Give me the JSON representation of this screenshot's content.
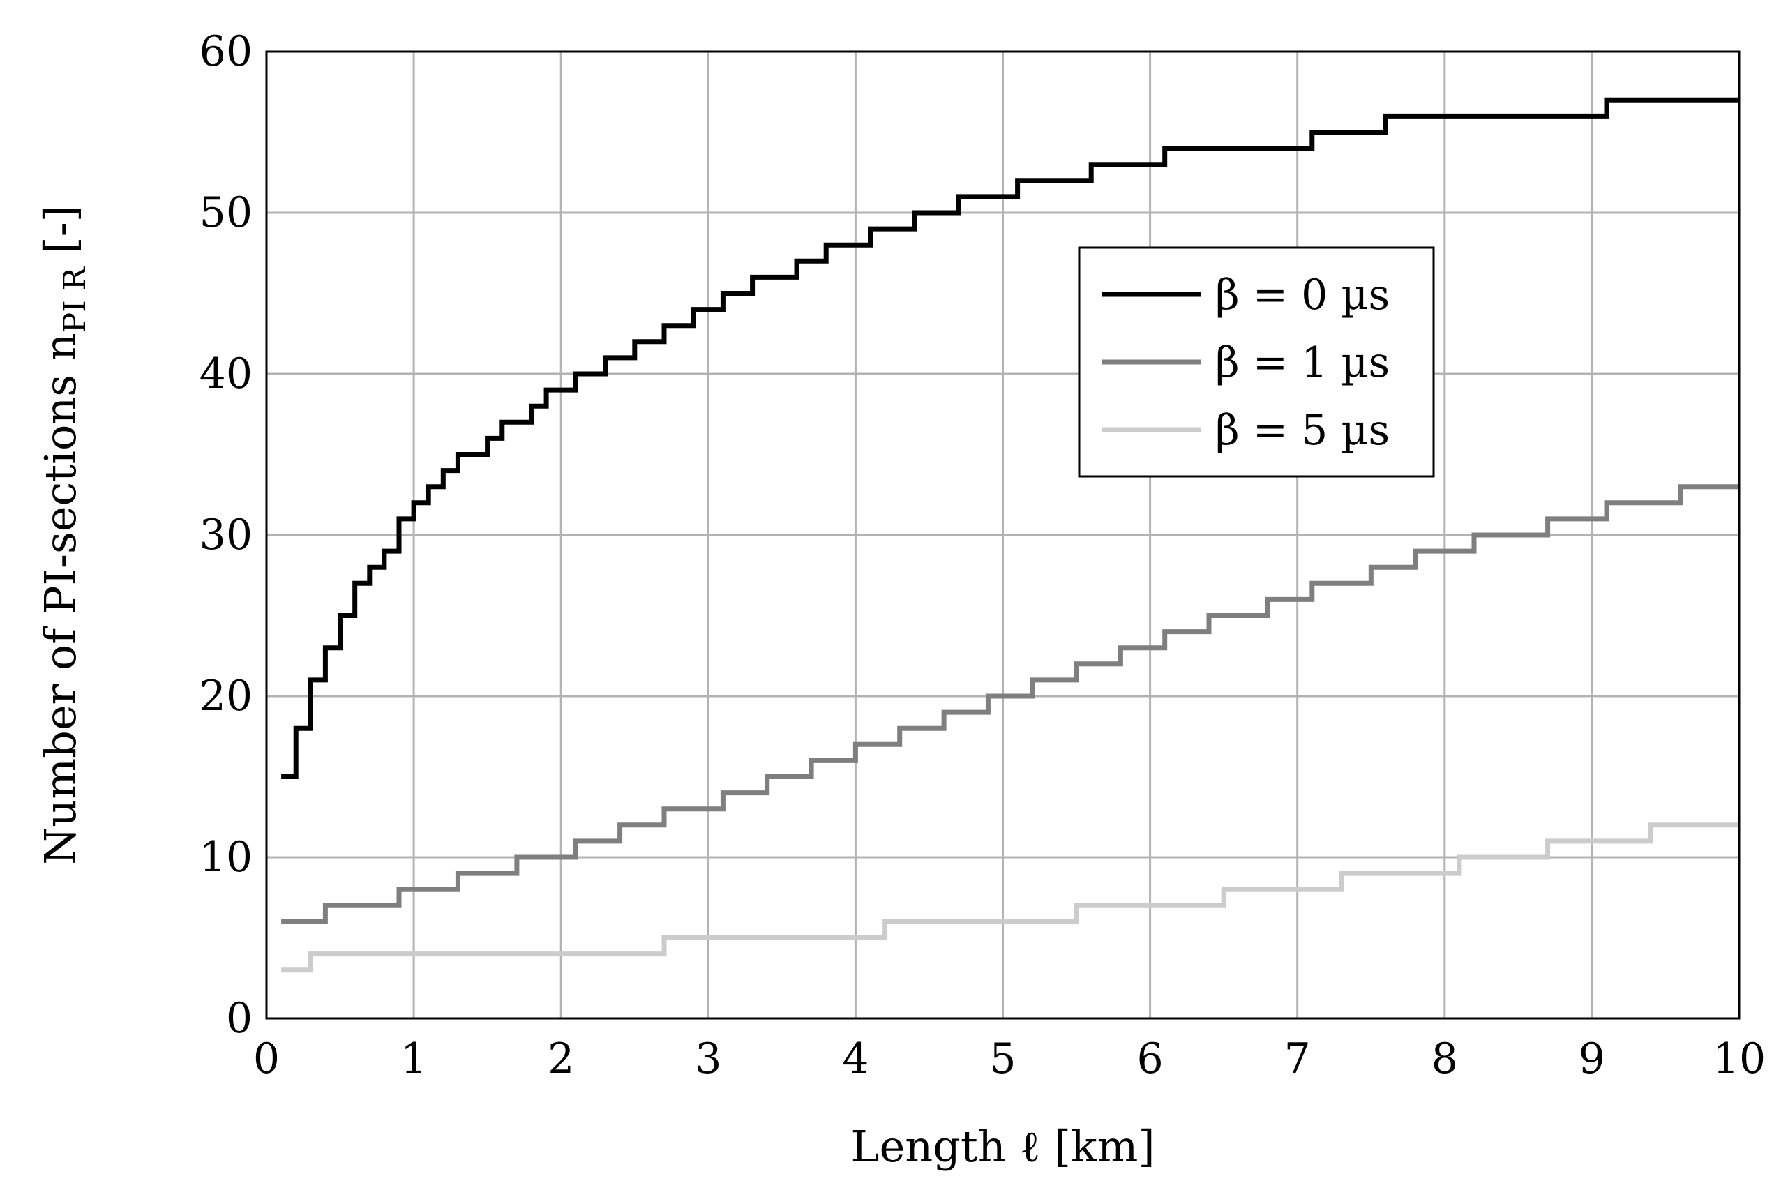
{
  "chart_data": {
    "type": "line",
    "step": true,
    "xlabel": "Length ℓ [km]",
    "ylabel_main": "Number of PI-sections n",
    "ylabel_sub": "PI R",
    "ylabel_end": " [-]",
    "xlim": [
      0,
      10
    ],
    "ylim": [
      0,
      60
    ],
    "xticks": [
      0,
      1,
      2,
      3,
      4,
      5,
      6,
      7,
      8,
      9,
      10
    ],
    "yticks": [
      0,
      10,
      20,
      30,
      40,
      50,
      60
    ],
    "grid": true,
    "legend_position": "upper-center-right",
    "series": [
      {
        "name": "β = 0 µs",
        "color": "#000000",
        "x": [
          0.1,
          0.2,
          0.3,
          0.4,
          0.5,
          0.6,
          0.7,
          0.8,
          0.9,
          1.0,
          1.1,
          1.2,
          1.3,
          1.5,
          1.6,
          1.8,
          1.9,
          2.1,
          2.3,
          2.5,
          2.7,
          2.9,
          3.1,
          3.3,
          3.6,
          3.8,
          4.1,
          4.4,
          4.7,
          5.1,
          5.6,
          6.1,
          7.1,
          7.6,
          9.1,
          10.0
        ],
        "y": [
          15,
          18,
          21,
          23,
          25,
          27,
          28,
          29,
          31,
          32,
          33,
          34,
          35,
          36,
          37,
          38,
          39,
          40,
          41,
          42,
          43,
          44,
          45,
          46,
          47,
          48,
          49,
          50,
          51,
          52,
          53,
          54,
          55,
          56,
          57,
          57
        ]
      },
      {
        "name": "β = 1 µs",
        "color": "#7f7f7f",
        "x": [
          0.1,
          0.4,
          0.9,
          1.3,
          1.7,
          2.1,
          2.4,
          2.7,
          3.1,
          3.4,
          3.7,
          4.0,
          4.3,
          4.6,
          4.9,
          5.2,
          5.5,
          5.8,
          6.1,
          6.4,
          6.8,
          7.1,
          7.5,
          7.8,
          8.2,
          8.7,
          9.1,
          9.6,
          10.0
        ],
        "y": [
          6,
          7,
          8,
          9,
          10,
          11,
          12,
          13,
          14,
          15,
          16,
          17,
          18,
          19,
          20,
          21,
          22,
          23,
          24,
          25,
          26,
          27,
          28,
          29,
          30,
          31,
          32,
          33,
          33
        ]
      },
      {
        "name": "β = 5 µs",
        "color": "#cccccc",
        "x": [
          0.1,
          0.3,
          2.7,
          4.2,
          5.5,
          6.5,
          7.3,
          8.1,
          8.7,
          9.4,
          10.0
        ],
        "y": [
          3,
          4,
          5,
          6,
          7,
          8,
          9,
          10,
          11,
          12,
          12
        ]
      }
    ]
  }
}
